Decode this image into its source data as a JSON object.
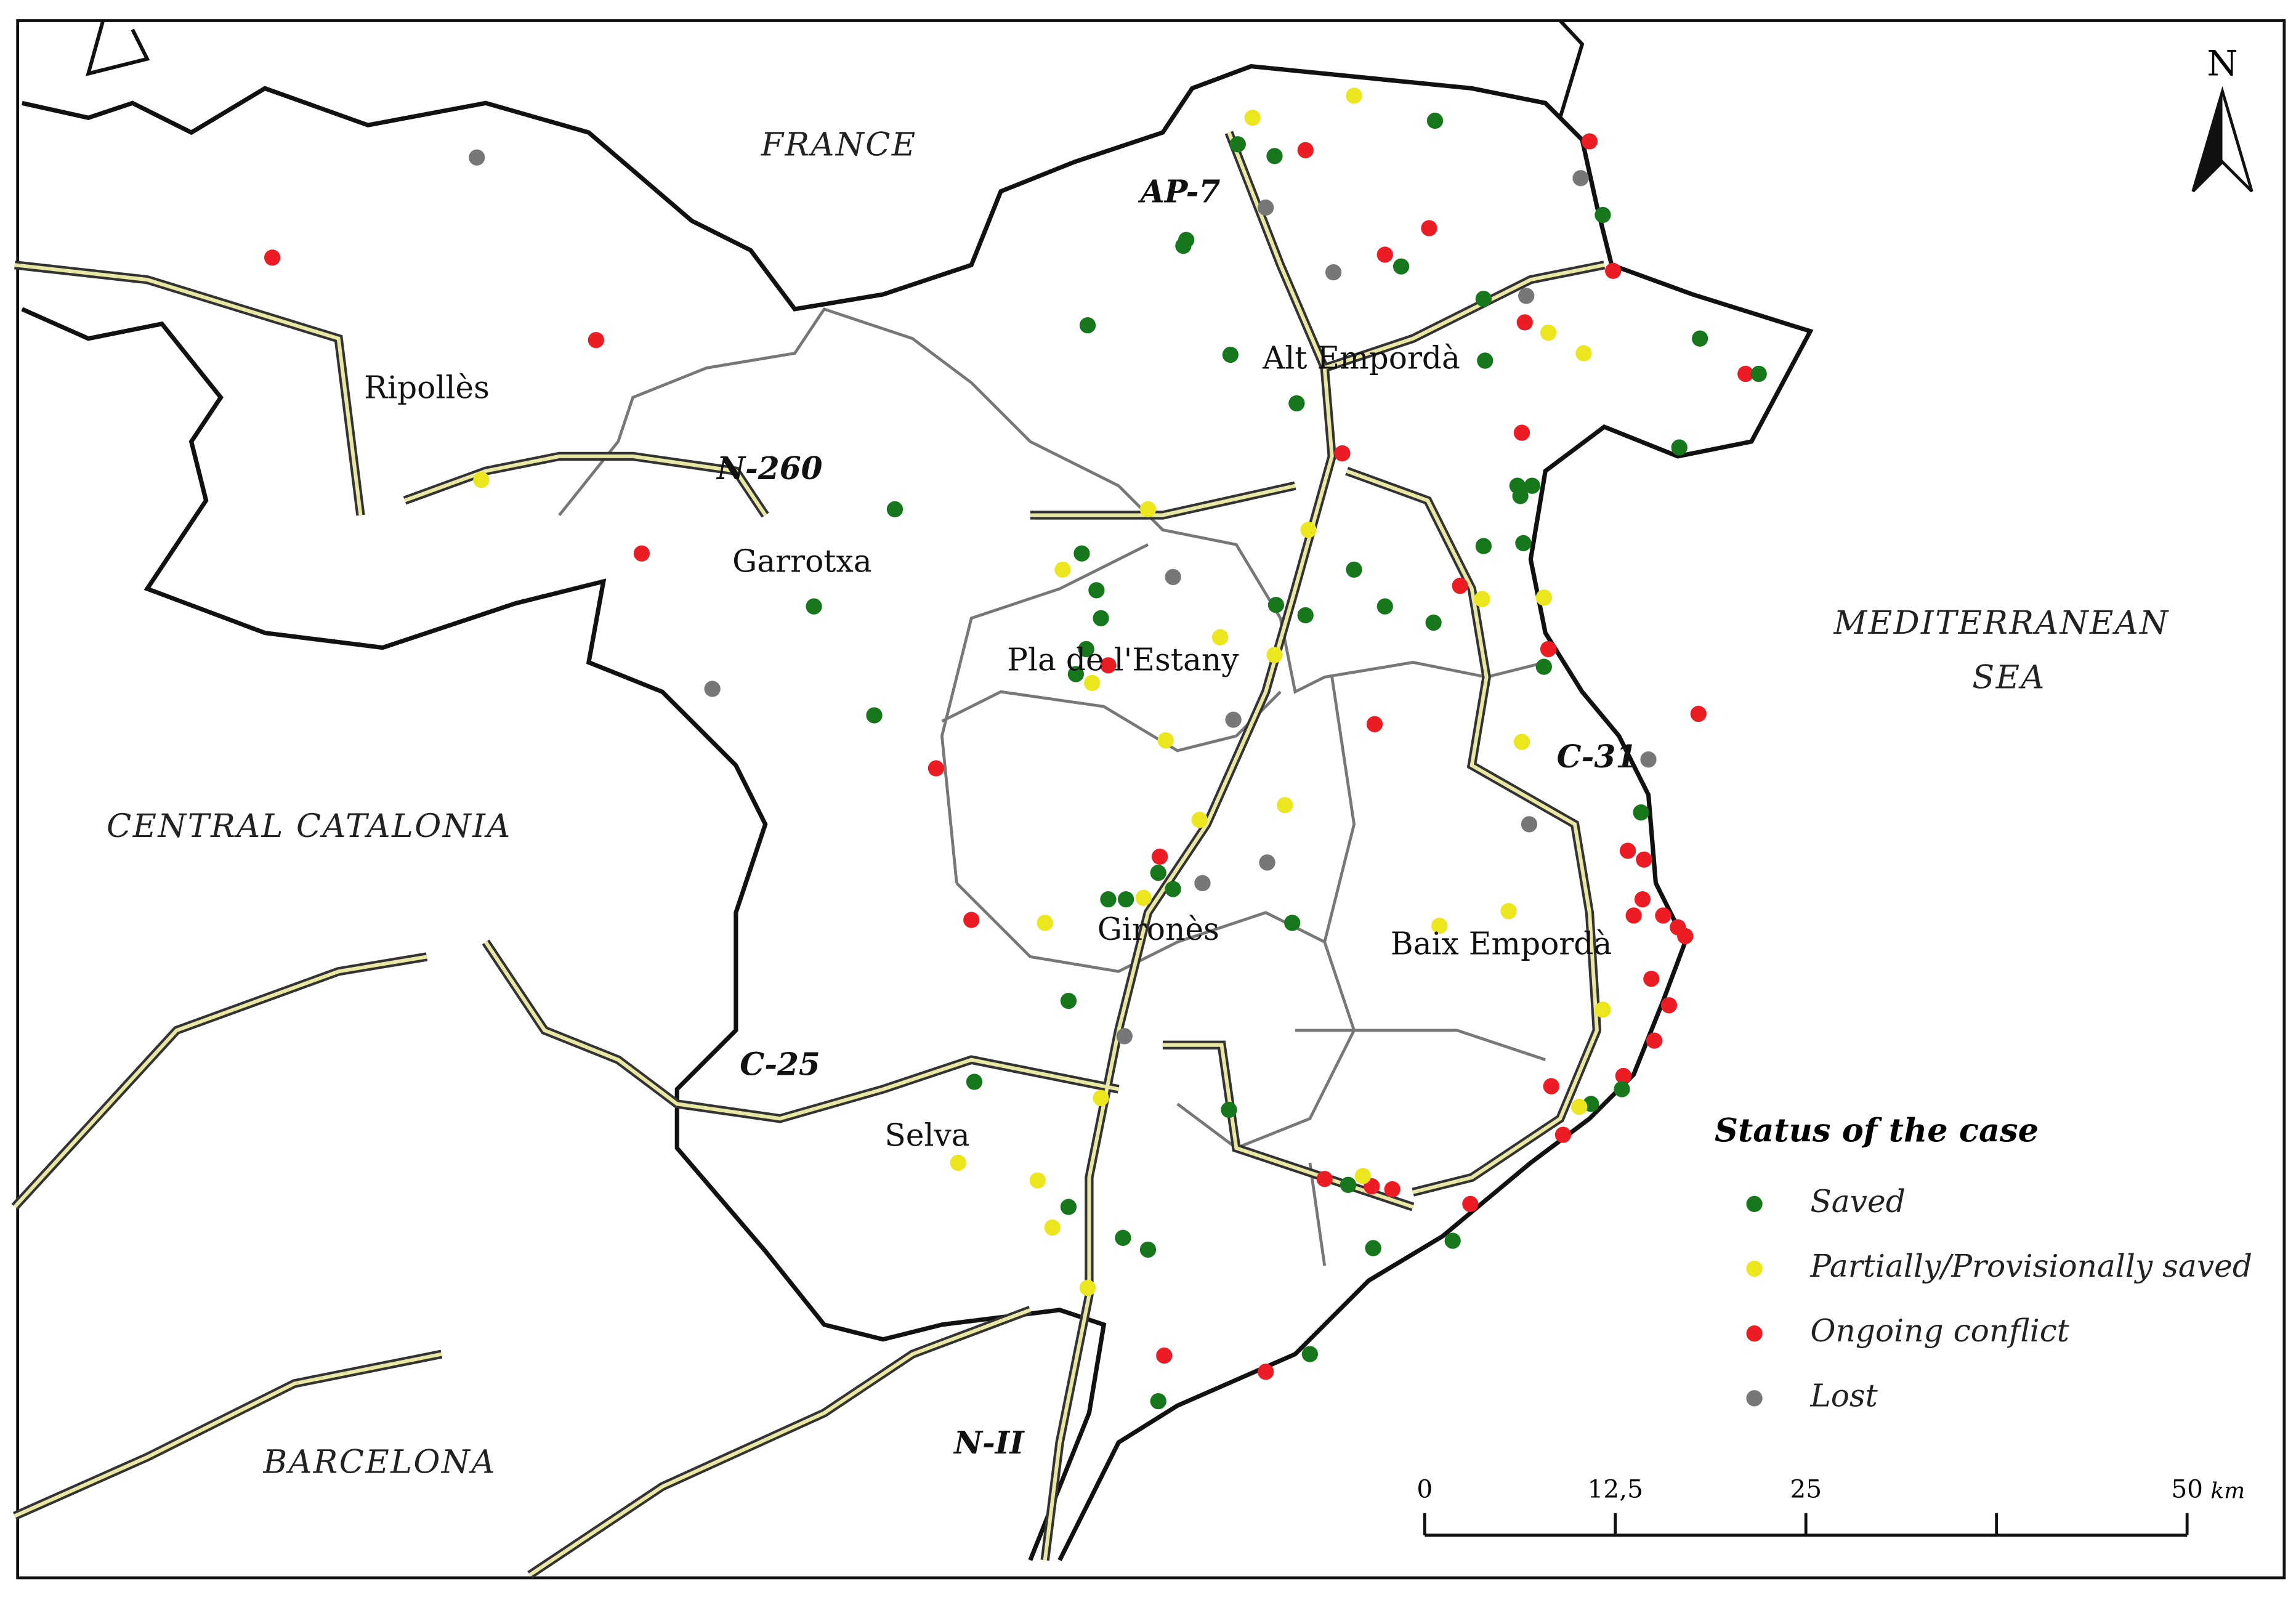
{
  "map": {
    "labels": {
      "france": "FRANCE",
      "sea_1": "MEDITERRANEAN",
      "sea_2": "SEA",
      "central": "CENTRAL CATALONIA",
      "barcelona": "BARCELONA"
    },
    "regions": [
      "Ripollès",
      "Garrotxa",
      "Alt Empordà",
      "Pla de l'Estany",
      "Gironès",
      "Baix Empordà",
      "Selva"
    ],
    "roads": [
      "AP-7",
      "N-260",
      "C-31",
      "C-25",
      "N-II"
    ],
    "north": "N",
    "legend": {
      "title": "Status of the case",
      "items": [
        {
          "name": "Saved",
          "color": "#17771c"
        },
        {
          "name": "Partially/Provisionally saved",
          "color": "#ece61e"
        },
        {
          "name": "Ongoing conflict",
          "color": "#ec1c24"
        },
        {
          "name": "Lost",
          "color": "#777777"
        }
      ]
    },
    "scale": {
      "ticks": [
        "0",
        "12,5",
        "25",
        "50"
      ],
      "unit": "km"
    }
  }
}
